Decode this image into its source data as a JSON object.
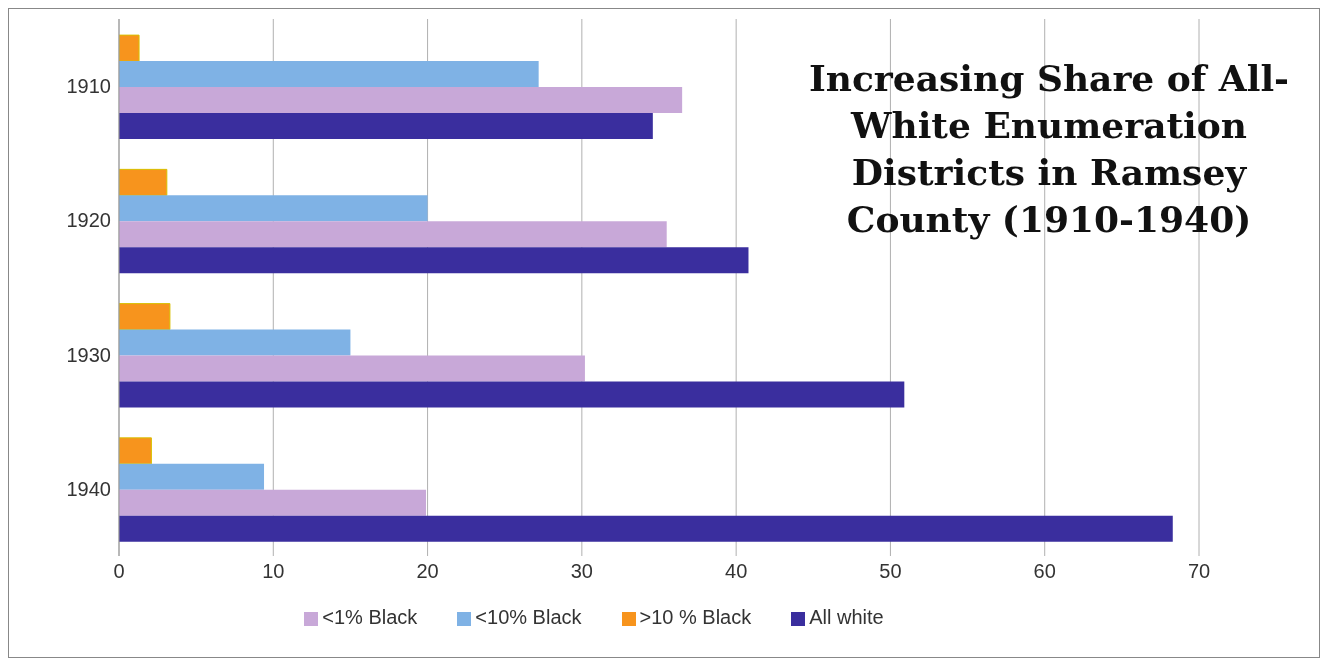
{
  "chart_data": {
    "type": "bar",
    "orientation": "horizontal",
    "title": "Increasing Share of All-White Enumeration Districts in Ramsey County (1910-1940)",
    "categories": [
      "1910",
      "1920",
      "1930",
      "1940"
    ],
    "series": [
      {
        "name": ">10 % Black",
        "color": "#f7941d",
        "values": [
          1.3,
          3.1,
          3.3,
          2.1
        ]
      },
      {
        "name": "<10% Black",
        "color": "#7fb2e5",
        "values": [
          27.2,
          20.0,
          15.0,
          9.4
        ]
      },
      {
        "name": "<1% Black",
        "color": "#c8a8d8",
        "values": [
          36.5,
          35.5,
          30.2,
          19.9
        ]
      },
      {
        "name": "All white",
        "color": "#3a2e9e",
        "values": [
          34.6,
          40.8,
          50.9,
          68.3
        ]
      }
    ],
    "xlim": [
      0,
      70
    ],
    "xticks": [
      0,
      10,
      20,
      30,
      40,
      50,
      60,
      70
    ],
    "grid": "x",
    "legend": "bottom"
  }
}
